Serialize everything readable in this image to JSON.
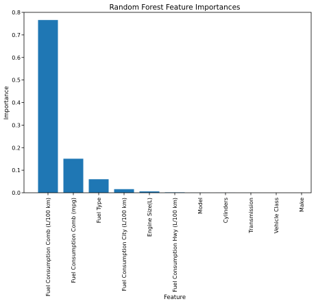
{
  "chart_data": {
    "type": "bar",
    "title": "Random Forest Feature Importances",
    "xlabel": "Feature",
    "ylabel": "Importance",
    "ylim": [
      0,
      0.8
    ],
    "yticks": [
      "0.0",
      "0.1",
      "0.2",
      "0.3",
      "0.4",
      "0.5",
      "0.6",
      "0.7",
      "0.8"
    ],
    "categories": [
      "Fuel Consumption Comb (L/100 km)",
      "Fuel Consumption Comb (mpg)",
      "Fuel Type",
      "Fuel Consumption City (L/100 km)",
      "Engine Size(L)",
      "Fuel Consumption Hwy (L/100 km)",
      "Model",
      "Cylinders",
      "Transmission",
      "Vehicle Class",
      "Make"
    ],
    "values": [
      0.766,
      0.151,
      0.06,
      0.016,
      0.006,
      0.002,
      0.0005,
      0.0003,
      0.0002,
      0.0001,
      0.0001
    ],
    "bar_color": "#1f77b4",
    "grid": false
  }
}
